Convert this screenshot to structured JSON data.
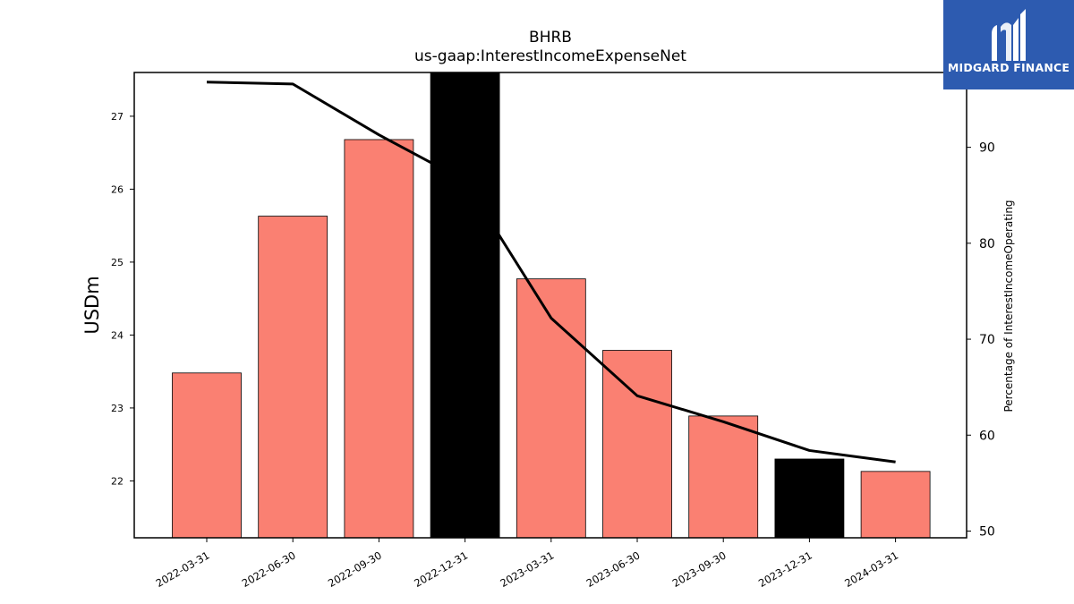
{
  "logo": {
    "text": "MIDGARD FINANCE",
    "background": "#2d5bb0"
  },
  "chart_data": {
    "type": "bar",
    "title": "BHRB",
    "subtitle": "us-gaap:InterestIncomeExpenseNet",
    "ylabel": "USDm",
    "y2label": "Percentage of InterestIncomeOperating",
    "categories": [
      "2022-03-31",
      "2022-06-30",
      "2022-09-30",
      "2022-12-31",
      "2023-03-31",
      "2023-06-30",
      "2023-09-30",
      "2023-12-31",
      "2024-03-31"
    ],
    "series": [
      {
        "axis": "left",
        "kind": "bar",
        "values": [
          23.48,
          25.63,
          26.68,
          27.6,
          24.77,
          23.79,
          22.89,
          22.3,
          22.13
        ],
        "colors": [
          "#fa8072",
          "#fa8072",
          "#fa8072",
          "#000000",
          "#fa8072",
          "#fa8072",
          "#fa8072",
          "#000000",
          "#fa8072"
        ]
      },
      {
        "axis": "right",
        "kind": "line",
        "color": "#000000",
        "values": [
          96.8,
          96.6,
          91.3,
          86.5,
          72.2,
          64.1,
          61.4,
          58.4,
          57.2
        ]
      }
    ],
    "ylim": [
      21.22,
      27.6
    ],
    "yticks": [
      22,
      23,
      24,
      25,
      26,
      27
    ],
    "y2lim": [
      49.3,
      97.8
    ],
    "y2ticks": [
      50,
      60,
      70,
      80,
      90
    ],
    "grid": false
  }
}
